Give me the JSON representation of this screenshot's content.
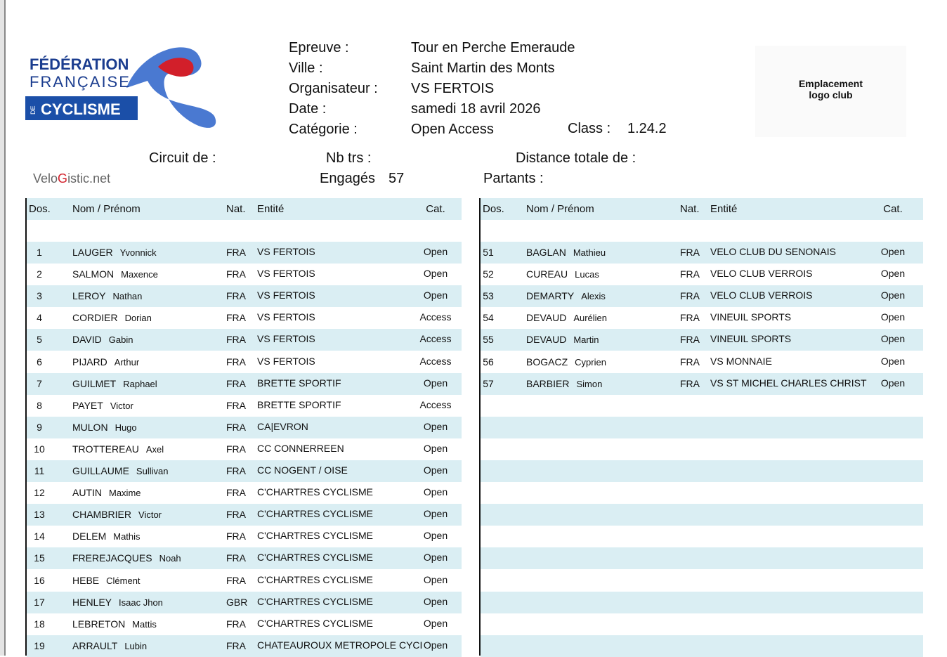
{
  "logo": {
    "line1": "FÉDÉRATION",
    "line2": "FRANÇAISE",
    "de": "DE",
    "line3": "CYCLISME"
  },
  "header": {
    "fields": [
      [
        "Epreuve :",
        "Tour en Perche Emeraude"
      ],
      [
        "Ville :",
        "Saint Martin des Monts"
      ],
      [
        "Organisateur :",
        "VS FERTOIS"
      ],
      [
        "Date :",
        "samedi 18 avril 2026"
      ],
      [
        "Catégorie :",
        "Open Access"
      ]
    ],
    "class_label": "Class :",
    "class_value": "1.24.2"
  },
  "club_logo": {
    "line1": "Emplacement",
    "line2": "logo club"
  },
  "race": {
    "circuit": "Circuit de :",
    "laps": "Nb trs :",
    "distance": "Distance totale de :",
    "entered_label": "Engagés",
    "entered": 57,
    "starters": "Partants :"
  },
  "brand": {
    "part1": "Velo",
    "part2": "G",
    "part3": "istic.net"
  },
  "columns": [
    "Dos.",
    "Nom / Prénom",
    "Nat.",
    "Entité",
    "Cat."
  ],
  "table_left": {
    "rows": [
      [
        1,
        "LAUGER",
        "Yvonnick",
        "FRA",
        "VS FERTOIS",
        "Open"
      ],
      [
        2,
        "SALMON",
        "Maxence",
        "FRA",
        "VS FERTOIS",
        "Open"
      ],
      [
        3,
        "LEROY",
        "Nathan",
        "FRA",
        "VS FERTOIS",
        "Open"
      ],
      [
        4,
        "CORDIER",
        "Dorian",
        "FRA",
        "VS FERTOIS",
        "Access"
      ],
      [
        5,
        "DAVID",
        "Gabin",
        "FRA",
        "VS FERTOIS",
        "Access"
      ],
      [
        6,
        "PIJARD",
        "Arthur",
        "FRA",
        "VS FERTOIS",
        "Access"
      ],
      [
        7,
        "GUILMET",
        "Raphael",
        "FRA",
        "BRETTE SPORTIF",
        "Open"
      ],
      [
        8,
        "PAYET",
        "Victor",
        "FRA",
        "BRETTE SPORTIF",
        "Access"
      ],
      [
        9,
        "MULON",
        "Hugo",
        "FRA",
        "CA|EVRON",
        "Open"
      ],
      [
        10,
        "TROTTEREAU",
        "Axel",
        "FRA",
        "CC CONNERREEN",
        "Open"
      ],
      [
        11,
        "GUILLAUME",
        "Sullivan",
        "FRA",
        "CC NOGENT / OISE",
        "Open"
      ],
      [
        12,
        "AUTIN",
        "Maxime",
        "FRA",
        "C'CHARTRES CYCLISME",
        "Open"
      ],
      [
        13,
        "CHAMBRIER",
        "Victor",
        "FRA",
        "C'CHARTRES CYCLISME",
        "Open"
      ],
      [
        14,
        "DELEM",
        "Mathis",
        "FRA",
        "C'CHARTRES CYCLISME",
        "Open"
      ],
      [
        15,
        "FREREJACQUES",
        "Noah",
        "FRA",
        "C'CHARTRES CYCLISME",
        "Open"
      ],
      [
        16,
        "HEBE",
        "Clément",
        "FRA",
        "C'CHARTRES CYCLISME",
        "Open"
      ],
      [
        17,
        "HENLEY",
        "Isaac Jhon",
        "GBR",
        "C'CHARTRES CYCLISME",
        "Open"
      ],
      [
        18,
        "LEBRETON",
        "Mattis",
        "FRA",
        "C'CHARTRES CYCLISME",
        "Open"
      ],
      [
        19,
        "ARRAULT",
        "Lubin",
        "FRA",
        "CHATEAUROUX METROPOLE CYCI",
        "Open"
      ]
    ]
  },
  "table_right": {
    "rows": [
      [
        51,
        "BAGLAN",
        "Mathieu",
        "FRA",
        "VELO CLUB DU SENONAIS",
        "Open"
      ],
      [
        52,
        "CUREAU",
        "Lucas",
        "FRA",
        "VELO CLUB VERROIS",
        "Open"
      ],
      [
        53,
        "DEMARTY",
        "Alexis",
        "FRA",
        "VELO CLUB VERROIS",
        "Open"
      ],
      [
        54,
        "DEVAUD",
        "Aurélien",
        "FRA",
        "VINEUIL SPORTS",
        "Open"
      ],
      [
        55,
        "DEVAUD",
        "Martin",
        "FRA",
        "VINEUIL SPORTS",
        "Open"
      ],
      [
        56,
        "BOGACZ",
        "Cyprien",
        "FRA",
        "VS MONNAIE",
        "Open"
      ],
      [
        57,
        "BARBIER",
        "Simon",
        "FRA",
        "VS ST MICHEL CHARLES CHRIST",
        "Open"
      ]
    ]
  }
}
